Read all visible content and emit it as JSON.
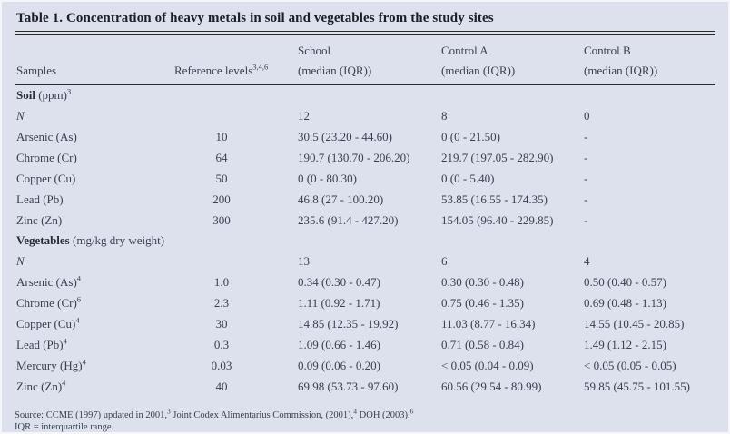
{
  "title": "Table 1. Concentration of heavy metals in soil and vegetables from the study sites",
  "colors": {
    "background": "#dce1ed",
    "text": "#3a4050",
    "title_text": "#1b1e25",
    "rule": "#2a2b30"
  },
  "columns": {
    "samples": "Samples",
    "reference": {
      "label": "Reference levels",
      "sup": "3,4,6"
    },
    "groups": [
      {
        "name": "School",
        "sub": "(median (IQR))"
      },
      {
        "name": "Control A",
        "sub": "(median (IQR))"
      },
      {
        "name": "Control B",
        "sub": "(median (IQR))"
      }
    ]
  },
  "sections": [
    {
      "heading": {
        "bold": "Soil",
        "rest": " (ppm)",
        "sup": "3"
      },
      "rows": [
        {
          "label": "N",
          "italic": true,
          "sup": "",
          "ref": "",
          "school": "12",
          "control_a": "8",
          "control_b": "0"
        },
        {
          "label": "Arsenic (As)",
          "italic": false,
          "sup": "",
          "ref": "10",
          "school": "30.5 (23.20 - 44.60)",
          "control_a": "0 (0 - 21.50)",
          "control_b": "-"
        },
        {
          "label": "Chrome (Cr)",
          "italic": false,
          "sup": "",
          "ref": "64",
          "school": "190.7 (130.70 - 206.20)",
          "control_a": "219.7 (197.05 - 282.90)",
          "control_b": "-"
        },
        {
          "label": "Copper (Cu)",
          "italic": false,
          "sup": "",
          "ref": "50",
          "school": "0 (0 - 80.30)",
          "control_a": "0 (0 - 5.40)",
          "control_b": "-"
        },
        {
          "label": "Lead (Pb)",
          "italic": false,
          "sup": "",
          "ref": "200",
          "school": "46.8 (27 - 100.20)",
          "control_a": "53.85 (16.55 - 174.35)",
          "control_b": "-"
        },
        {
          "label": "Zinc (Zn)",
          "italic": false,
          "sup": "",
          "ref": "300",
          "school": "235.6 (91.4 - 427.20)",
          "control_a": "154.05 (96.40 - 229.85)",
          "control_b": "-"
        }
      ]
    },
    {
      "heading": {
        "bold": "Vegetables",
        "rest": " (mg/kg dry weight)",
        "sup": ""
      },
      "rows": [
        {
          "label": "N",
          "italic": true,
          "sup": "",
          "ref": "",
          "school": "13",
          "control_a": "6",
          "control_b": "4"
        },
        {
          "label": "Arsenic (As)",
          "italic": false,
          "sup": "4",
          "ref": "1.0",
          "school": "0.34 (0.30 - 0.47)",
          "control_a": "0.30 (0.30 - 0.48)",
          "control_b": "0.50 (0.40 - 0.57)"
        },
        {
          "label": "Chrome (Cr)",
          "italic": false,
          "sup": "6",
          "ref": "2.3",
          "school": "1.11 (0.92 - 1.71)",
          "control_a": "0.75 (0.46 - 1.35)",
          "control_b": "0.69 (0.48 - 1.13)"
        },
        {
          "label": "Copper (Cu)",
          "italic": false,
          "sup": "4",
          "ref": "30",
          "school": "14.85 (12.35 - 19.92)",
          "control_a": "11.03 (8.77 - 16.34)",
          "control_b": "14.55 (10.45 - 20.85)"
        },
        {
          "label": "Lead (Pb)",
          "italic": false,
          "sup": "4",
          "ref": "0.3",
          "school": "1.09 (0.66 - 1.46)",
          "control_a": "0.71 (0.58 - 0.84)",
          "control_b": "1.49 (1.12 - 2.15)"
        },
        {
          "label": "Mercury (Hg)",
          "italic": false,
          "sup": "4",
          "ref": "0.03",
          "school": "0.09 (0.06 - 0.20)",
          "control_a": "< 0.05 (0.04 - 0.09)",
          "control_b": "< 0.05 (0.05 - 0.05)"
        },
        {
          "label": "Zinc (Zn)",
          "italic": false,
          "sup": "4",
          "ref": "40",
          "school": "69.98 (53.73 - 97.60)",
          "control_a": "60.56 (29.54 - 80.99)",
          "control_b": "59.85 (45.75 - 101.55)"
        }
      ]
    }
  ],
  "footnotes": {
    "source_segments": [
      {
        "text": "Source: CCME (1997) updated in 2001,"
      },
      {
        "sup": "3"
      },
      {
        "text": " Joint Codex Alimentarius Commission, (2001),"
      },
      {
        "sup": "4"
      },
      {
        "text": " DOH (2003)."
      },
      {
        "sup": "6"
      }
    ],
    "iqr": "IQR = interquartile range."
  }
}
